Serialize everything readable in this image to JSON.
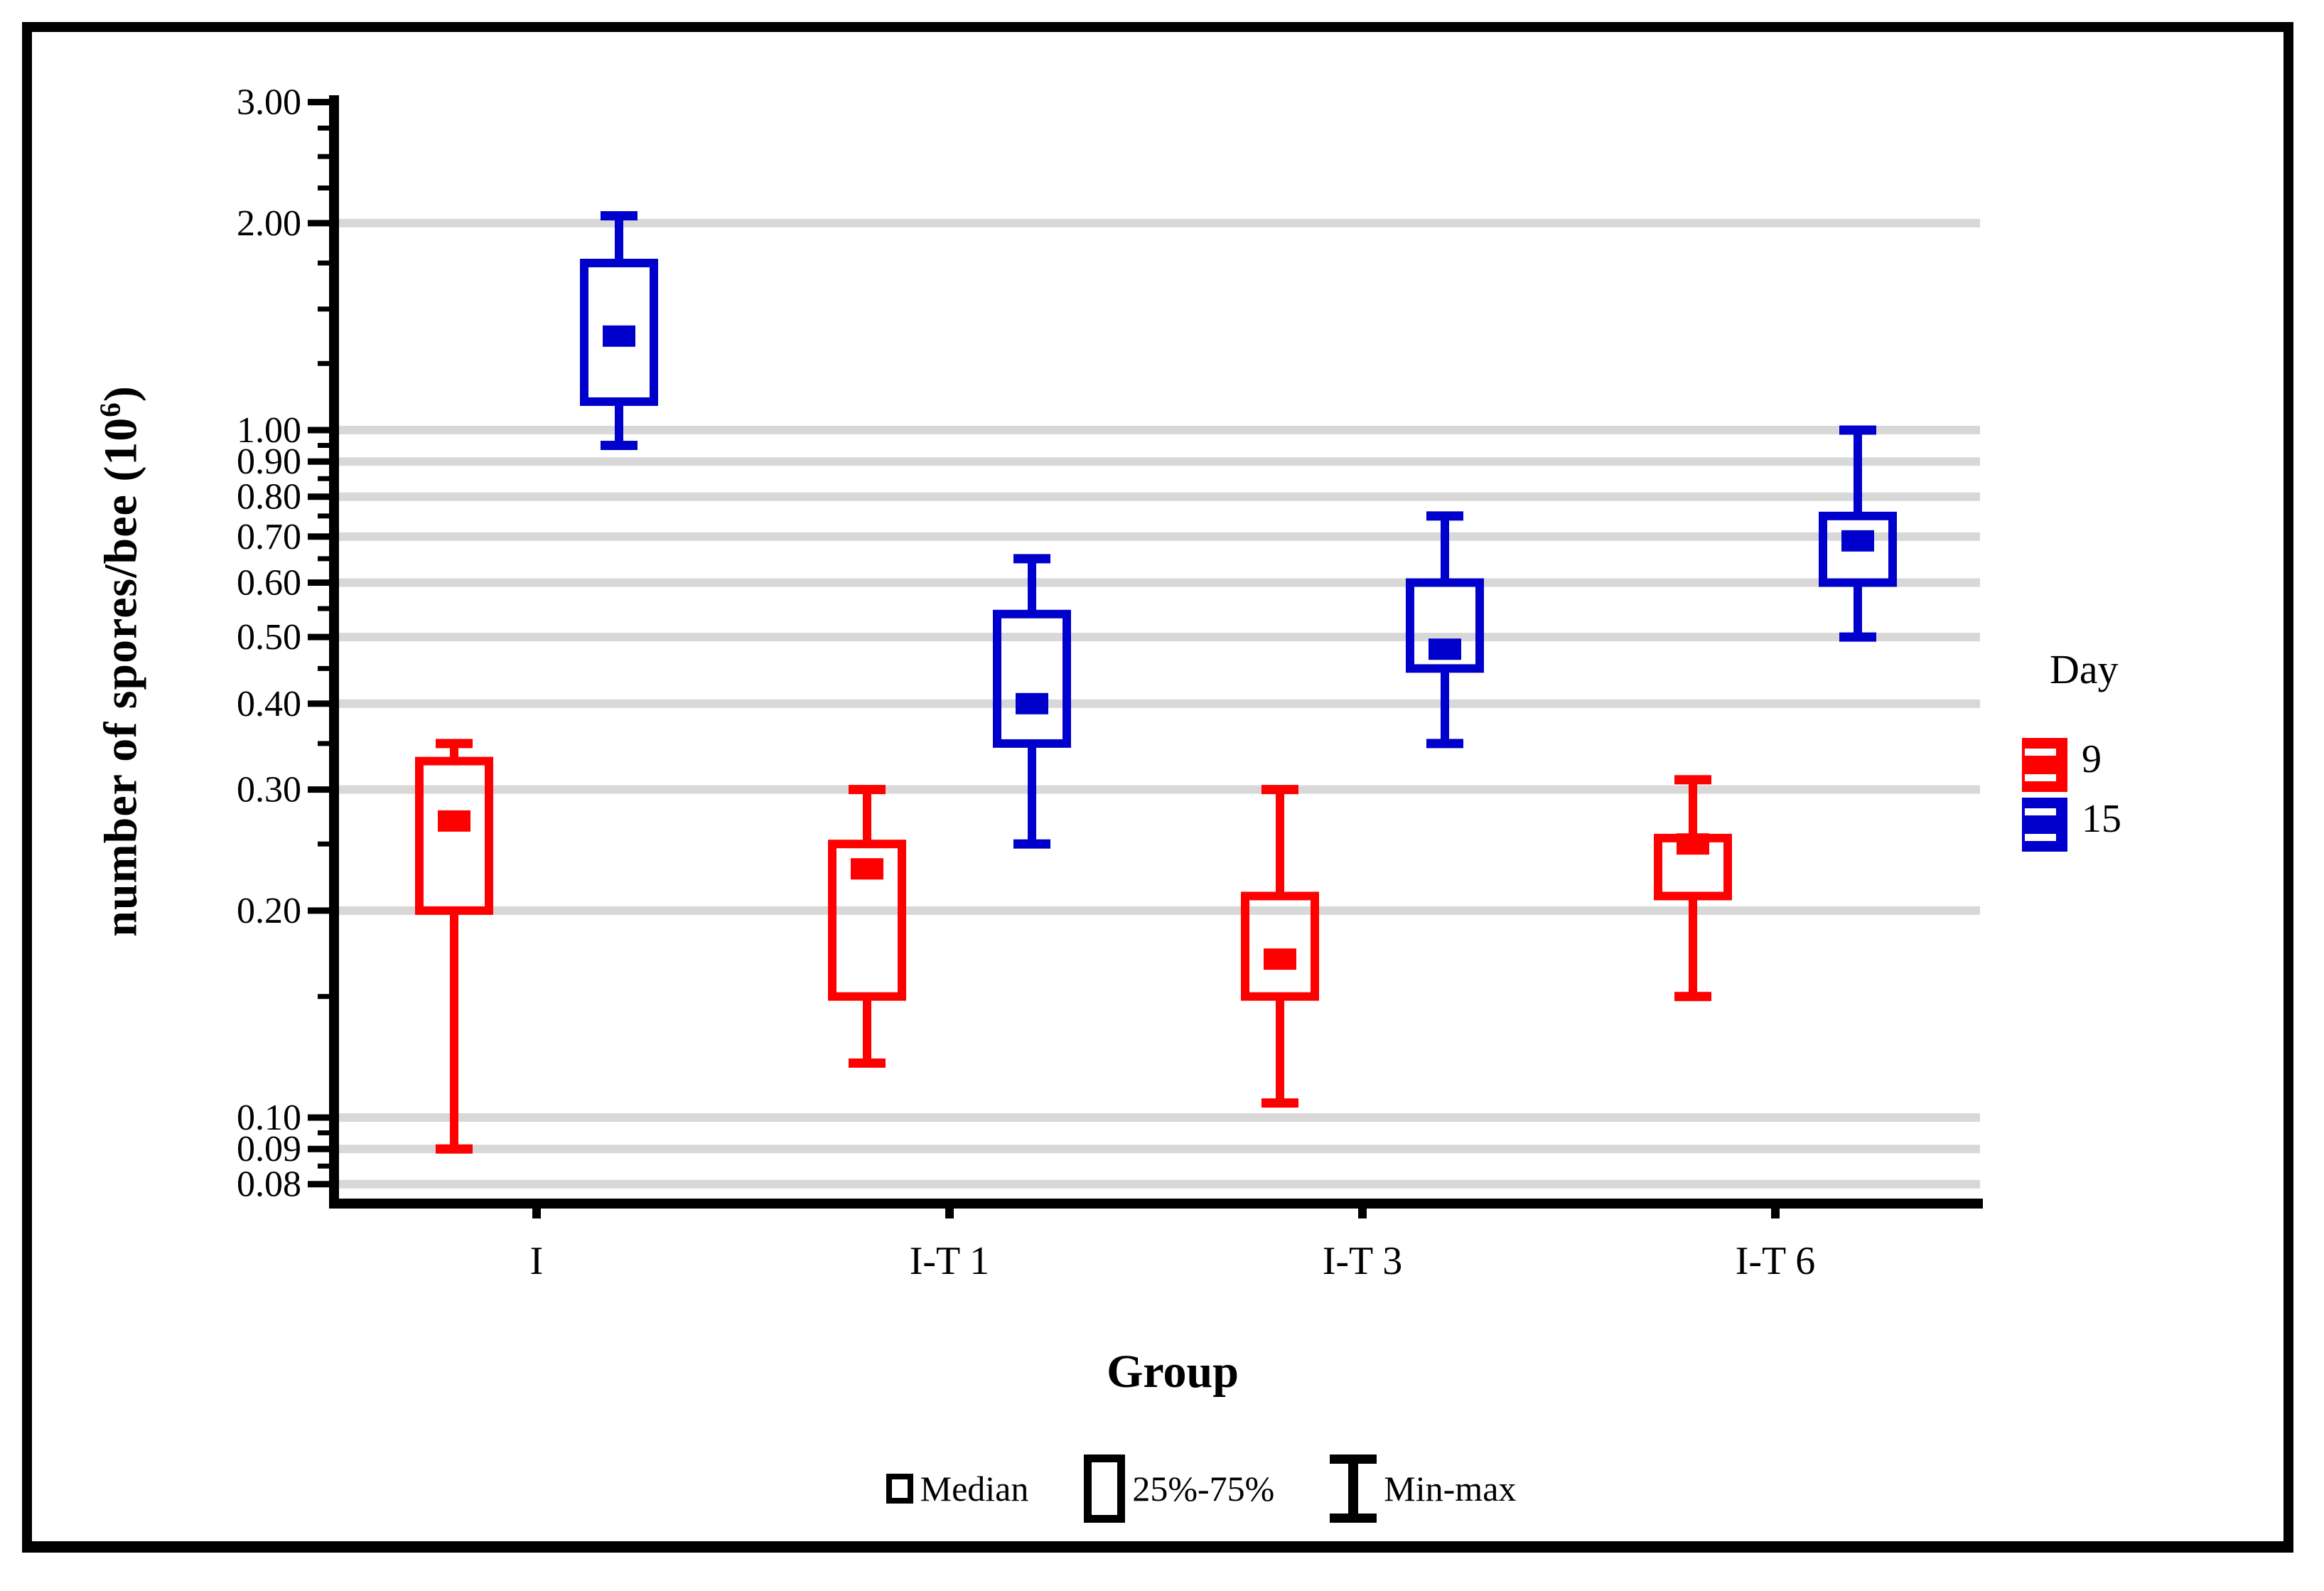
{
  "chart_data": {
    "type": "boxplot",
    "xlabel": "Group",
    "ylabel_prefix": "number of spores/bee (10",
    "ylabel_sup": "6",
    "ylabel_suffix": ")",
    "y_scale": "log",
    "ylim": [
      0.075,
      3.05
    ],
    "grid": "horizontal-on",
    "gridline_color": "#D8D8D8",
    "axis_color": "#000000",
    "categories": [
      "I",
      "I-T 1",
      "I-T 3",
      "I-T 6"
    ],
    "y_ticks": [
      {
        "label": "3.00",
        "value": 3.0
      },
      {
        "label": "2.00",
        "value": 2.0
      },
      {
        "label": "1.00",
        "value": 1.0
      },
      {
        "label": "0.90",
        "value": 0.9
      },
      {
        "label": "0.80",
        "value": 0.8
      },
      {
        "label": "0.70",
        "value": 0.7
      },
      {
        "label": "0.60",
        "value": 0.6
      },
      {
        "label": "0.50",
        "value": 0.5
      },
      {
        "label": "0.40",
        "value": 0.4
      },
      {
        "label": "0.30",
        "value": 0.3
      },
      {
        "label": "0.20",
        "value": 0.2
      },
      {
        "label": "0.10",
        "value": 0.1
      },
      {
        "label": "0.09",
        "value": 0.09
      },
      {
        "label": "0.08",
        "value": 0.08
      }
    ],
    "y_minor_ticks": [
      2.75,
      2.5,
      2.25,
      1.75,
      1.5,
      1.25,
      0.95,
      0.85,
      0.75,
      0.65,
      0.55,
      0.45,
      0.35,
      0.25,
      0.15,
      0.095,
      0.085
    ],
    "gridline_values": [
      2.0,
      1.0,
      0.9,
      0.8,
      0.7,
      0.6,
      0.5,
      0.4,
      0.3,
      0.2,
      0.1,
      0.09,
      0.08
    ],
    "legend": {
      "title": "Day",
      "position": "right"
    },
    "series": [
      {
        "name": "9",
        "color": "#FF0000",
        "boxes": [
          {
            "category": "I",
            "min": 0.09,
            "q1": 0.2,
            "median": 0.27,
            "q3": 0.33,
            "max": 0.35
          },
          {
            "category": "I-T 1",
            "min": 0.12,
            "q1": 0.15,
            "median": 0.23,
            "q3": 0.25,
            "max": 0.3
          },
          {
            "category": "I-T 3",
            "min": 0.105,
            "q1": 0.15,
            "median": 0.17,
            "q3": 0.21,
            "max": 0.3
          },
          {
            "category": "I-T 6",
            "min": 0.15,
            "q1": 0.21,
            "median": 0.25,
            "q3": 0.255,
            "max": 0.31
          }
        ]
      },
      {
        "name": "15",
        "color": "#0000CC",
        "boxes": [
          {
            "category": "I",
            "min": 0.95,
            "q1": 1.1,
            "median": 1.37,
            "q3": 1.75,
            "max": 2.05
          },
          {
            "category": "I-T 1",
            "min": 0.25,
            "q1": 0.35,
            "median": 0.4,
            "q3": 0.54,
            "max": 0.65
          },
          {
            "category": "I-T 3",
            "min": 0.35,
            "q1": 0.45,
            "median": 0.48,
            "q3": 0.6,
            "max": 0.75
          },
          {
            "category": "I-T 6",
            "min": 0.5,
            "q1": 0.6,
            "median": 0.69,
            "q3": 0.75,
            "max": 1.0
          }
        ]
      }
    ],
    "stat_legend": [
      {
        "icon": "median-square-icon",
        "label": "Median"
      },
      {
        "icon": "iqr-box-icon",
        "label": "25%-75%"
      },
      {
        "icon": "minmax-whisker-icon",
        "label": "Min-max"
      }
    ]
  }
}
